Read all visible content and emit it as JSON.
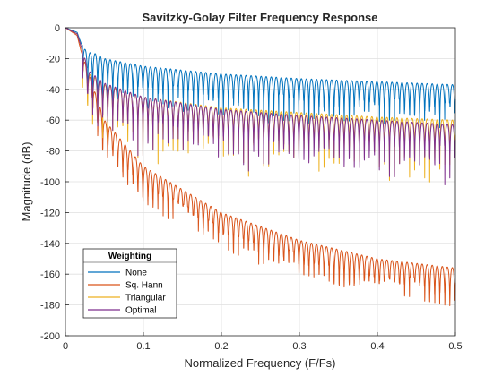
{
  "chart_data": {
    "type": "line",
    "title": "Savitzky-Golay Filter Frequency Response",
    "xlabel": "Normalized Frequency (F/Fs)",
    "ylabel": "Magnitude (dB)",
    "xlim": [
      0,
      0.5
    ],
    "ylim": [
      -200,
      0
    ],
    "x_ticks": [
      "0",
      "0.1",
      "0.2",
      "0.3",
      "0.4",
      "0.5"
    ],
    "y_ticks": [
      "0",
      "-20",
      "-40",
      "-60",
      "-80",
      "-100",
      "-120",
      "-140",
      "-160",
      "-180",
      "-200"
    ],
    "grid": true,
    "legend": {
      "title": "Weighting",
      "placement": "bottom-left"
    },
    "series": [
      {
        "name": "None",
        "color": "#0072BD",
        "envelope": {
          "x": [
            0,
            0.015,
            0.02,
            0.025,
            0.03,
            0.04,
            0.05,
            0.1,
            0.2,
            0.3,
            0.4,
            0.5
          ],
          "y": [
            0,
            -3,
            -10,
            -14,
            -16,
            -17,
            -20,
            -25,
            -30,
            -33,
            -35,
            -37
          ]
        },
        "null_depth": 30
      },
      {
        "name": "Sq. Hann",
        "color": "#D95319",
        "envelope": {
          "x": [
            0,
            0.015,
            0.02,
            0.03,
            0.04,
            0.05,
            0.1,
            0.2,
            0.3,
            0.4,
            0.5
          ],
          "y": [
            0,
            -5,
            -15,
            -30,
            -45,
            -60,
            -90,
            -120,
            -138,
            -150,
            -156
          ]
        },
        "null_depth": 25
      },
      {
        "name": "Triangular",
        "color": "#EDB120",
        "envelope": {
          "x": [
            0,
            0.015,
            0.02,
            0.025,
            0.03,
            0.04,
            0.05,
            0.1,
            0.2,
            0.3,
            0.4,
            0.5
          ],
          "y": [
            0,
            -4,
            -12,
            -20,
            -30,
            -33,
            -37,
            -45,
            -52,
            -55,
            -58,
            -60
          ]
        },
        "null_depth": 45
      },
      {
        "name": "Optimal",
        "color": "#7E2F8E",
        "envelope": {
          "x": [
            0,
            0.015,
            0.02,
            0.025,
            0.03,
            0.04,
            0.05,
            0.1,
            0.2,
            0.3,
            0.4,
            0.5
          ],
          "y": [
            0,
            -4,
            -12,
            -20,
            -28,
            -32,
            -36,
            -45,
            -53,
            -57,
            -60,
            -63
          ]
        },
        "null_depth": 40
      }
    ]
  }
}
